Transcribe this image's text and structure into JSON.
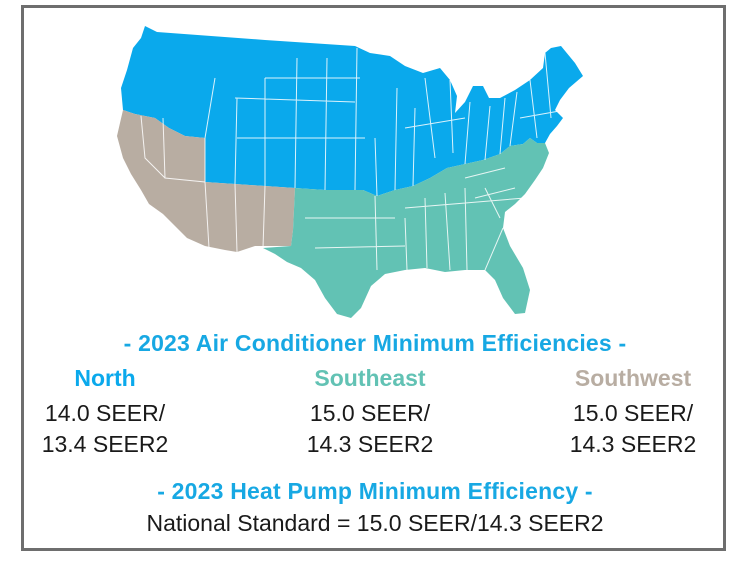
{
  "colors": {
    "north": "#0aa9ec",
    "southeast": "#62c2b4",
    "southwest": "#b8ada2",
    "heading": "#17a8e3",
    "border": "#6e6e6e",
    "text": "#1a1a1a"
  },
  "ac_heading": "- 2023 Air Conditioner Minimum Efficiencies -",
  "regions": [
    {
      "name": "North",
      "line1": "14.0 SEER/",
      "line2": "13.4 SEER2"
    },
    {
      "name": "Southeast",
      "line1": "15.0 SEER/",
      "line2": "14.3 SEER2"
    },
    {
      "name": "Southwest",
      "line1": "15.0 SEER/",
      "line2": "14.3 SEER2"
    }
  ],
  "hp_heading": "- 2023 Heat Pump Minimum Efficiency -",
  "national_standard": "National Standard = 15.0 SEER/14.3 SEER2"
}
